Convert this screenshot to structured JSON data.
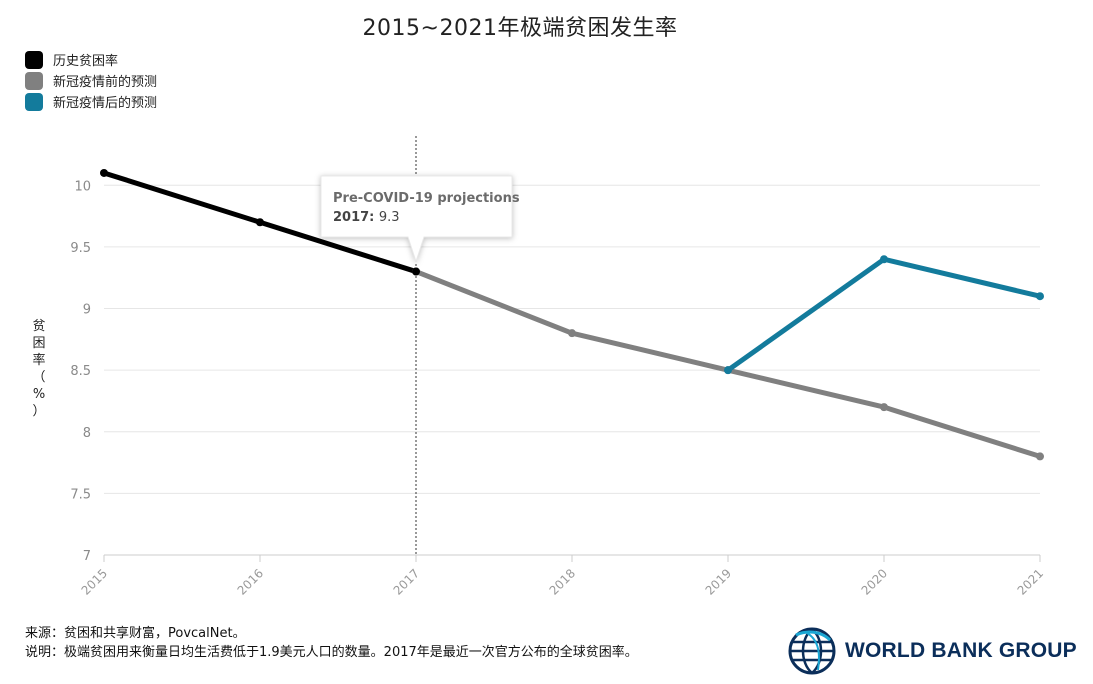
{
  "chart_data": {
    "type": "line",
    "title": "2015~2021年极端贫困发生率",
    "ylabel": [
      "贫",
      "困",
      "率",
      "（",
      "%",
      "）"
    ],
    "x": [
      "2015",
      "2016",
      "2017",
      "2018",
      "2019",
      "2020",
      "2021"
    ],
    "ylim": [
      7,
      10.4
    ],
    "yticks": [
      7,
      7.5,
      8,
      8.5,
      9,
      9.5,
      10
    ],
    "ytick_labels": [
      "7",
      "7.5",
      "8",
      "8.5",
      "9",
      "9.5",
      "10"
    ],
    "grid": true,
    "legend_position": "top-left",
    "series": [
      {
        "name": "历史贫困率",
        "color": "#000000",
        "points": [
          [
            "2015",
            10.1
          ],
          [
            "2016",
            9.7
          ],
          [
            "2017",
            9.3
          ]
        ]
      },
      {
        "name": "新冠疫情前的预测",
        "color": "#808080",
        "points": [
          [
            "2017",
            9.3
          ],
          [
            "2018",
            8.8
          ],
          [
            "2019",
            8.5
          ],
          [
            "2020",
            8.2
          ],
          [
            "2021",
            7.8
          ]
        ]
      },
      {
        "name": "新冠疫情后的预测",
        "color": "#137b9c",
        "points": [
          [
            "2019",
            8.5
          ],
          [
            "2020",
            9.4
          ],
          [
            "2021",
            9.1
          ]
        ]
      }
    ],
    "marker_line_x": "2017",
    "tooltip": {
      "title": "Pre-COVID-19 projections",
      "key": "2017:",
      "value": "9.3",
      "x": "2017",
      "y": 9.3
    }
  },
  "footer": {
    "source": "来源：贫困和共享财富，PovcalNet。",
    "note": "说明：极端贫困用来衡量日均生活费低于1.9美元人口的数量。2017年是最近一次官方公布的全球贫困率。"
  },
  "logo": {
    "text": "WORLD BANK GROUP",
    "icon": "globe-icon"
  }
}
